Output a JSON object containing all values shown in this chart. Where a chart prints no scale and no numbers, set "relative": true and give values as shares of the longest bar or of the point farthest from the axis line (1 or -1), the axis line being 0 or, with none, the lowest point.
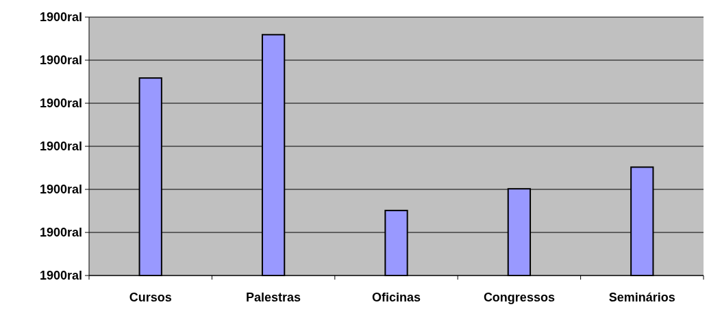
{
  "chart_data": {
    "type": "bar",
    "categories": [
      "Cursos",
      "Palestras",
      "Oficinas",
      "Congressos",
      "Seminários"
    ],
    "values": [
      0.82,
      1,
      0.27,
      0.36,
      0.45
    ],
    "color": "#9999ff",
    "relative": true,
    "annotations": [
      "1900ral",
      "1900ral",
      "1900ral",
      "1900ral",
      "1900ral",
      "1900ral",
      "1900ral"
    ],
    "grid": "y"
  }
}
